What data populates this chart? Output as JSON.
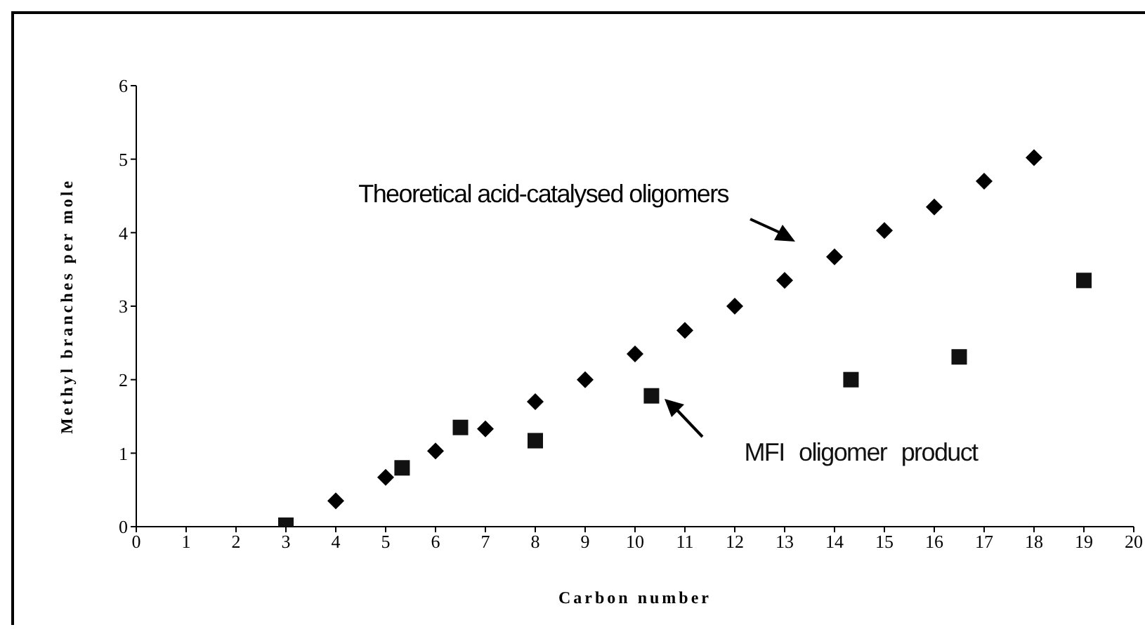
{
  "chart_data": {
    "type": "scatter",
    "xlabel": "Carbon number",
    "ylabel": "Methyl branches per mole",
    "xlim": [
      0,
      20
    ],
    "xticks": [
      0,
      1,
      2,
      3,
      4,
      5,
      6,
      7,
      8,
      9,
      10,
      11,
      12,
      13,
      14,
      15,
      16,
      17,
      18,
      19,
      20
    ],
    "ylim": [
      0,
      6
    ],
    "yticks": [
      0,
      1,
      2,
      3,
      4,
      5,
      6
    ],
    "grid": false,
    "legend": false,
    "series": [
      {
        "name": "Theoretical acid-catalysed oligomers",
        "color": "#000000",
        "marker": "diamond",
        "x": [
          4,
          5,
          6,
          7,
          8,
          9,
          10,
          11,
          12,
          13,
          14,
          15,
          16,
          17,
          18
        ],
        "values": [
          0.35,
          0.67,
          1.03,
          1.33,
          1.7,
          2.0,
          2.35,
          2.67,
          3.0,
          3.35,
          3.67,
          4.03,
          4.35,
          4.7,
          5.02
        ]
      },
      {
        "name": "MFI oligomer product",
        "color": "#111111",
        "marker": "square",
        "x": [
          3,
          5.33,
          6.5,
          8,
          10.33,
          14.33,
          16.5,
          19
        ],
        "values": [
          0.02,
          0.8,
          1.35,
          1.17,
          1.78,
          2.0,
          2.31,
          3.35
        ]
      }
    ]
  }
}
